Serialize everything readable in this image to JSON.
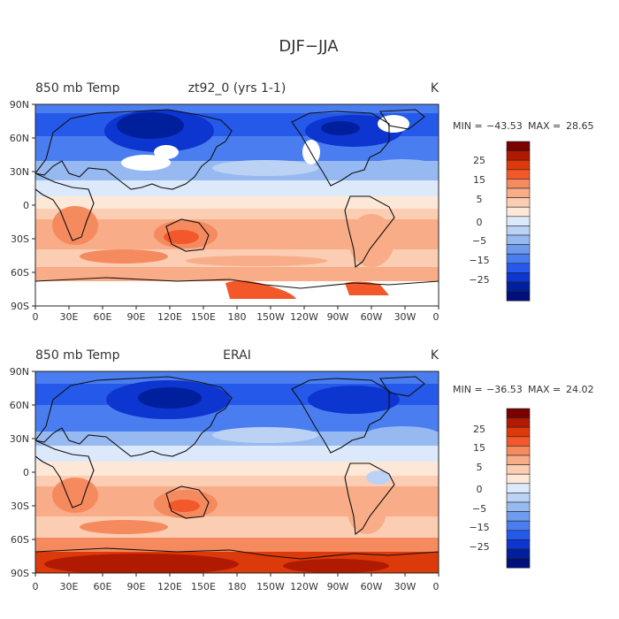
{
  "figure": {
    "title": "DJF−JJA"
  },
  "lon_ticks": [
    "0",
    "30E",
    "60E",
    "90E",
    "120E",
    "150E",
    "180",
    "150W",
    "120W",
    "90W",
    "60W",
    "30W",
    "0"
  ],
  "lat_ticks": [
    "90N",
    "60N",
    "30N",
    "0",
    "30S",
    "60S",
    "90S"
  ],
  "colorbar": {
    "labels": [
      "25",
      "15",
      "5",
      "0",
      "−5",
      "−15",
      "−25"
    ],
    "colors": [
      "#7a0000",
      "#b01a00",
      "#dc3a0a",
      "#f2582a",
      "#f58a5e",
      "#f9ac88",
      "#fbcdb2",
      "#fde8d8",
      "#dce9fb",
      "#bcd2f5",
      "#97b9f1",
      "#6f9bee",
      "#4a7ef0",
      "#2559ea",
      "#0d35cf",
      "#001f9c",
      "#00107a"
    ]
  },
  "panels": [
    {
      "variable": "850 mb Temp",
      "source": "zt92_0 (yrs 1-1)",
      "units": "K",
      "stats": {
        "min_label": "MIN =",
        "min": "−43.53",
        "max_label": "MAX =",
        "max": "28.65"
      },
      "missing_areas": true
    },
    {
      "variable": "850 mb Temp",
      "source": "ERAI",
      "units": "K",
      "stats": {
        "min_label": "MIN =",
        "min": "−36.53",
        "max_label": "MAX =",
        "max": "24.02"
      },
      "missing_areas": false
    }
  ]
}
